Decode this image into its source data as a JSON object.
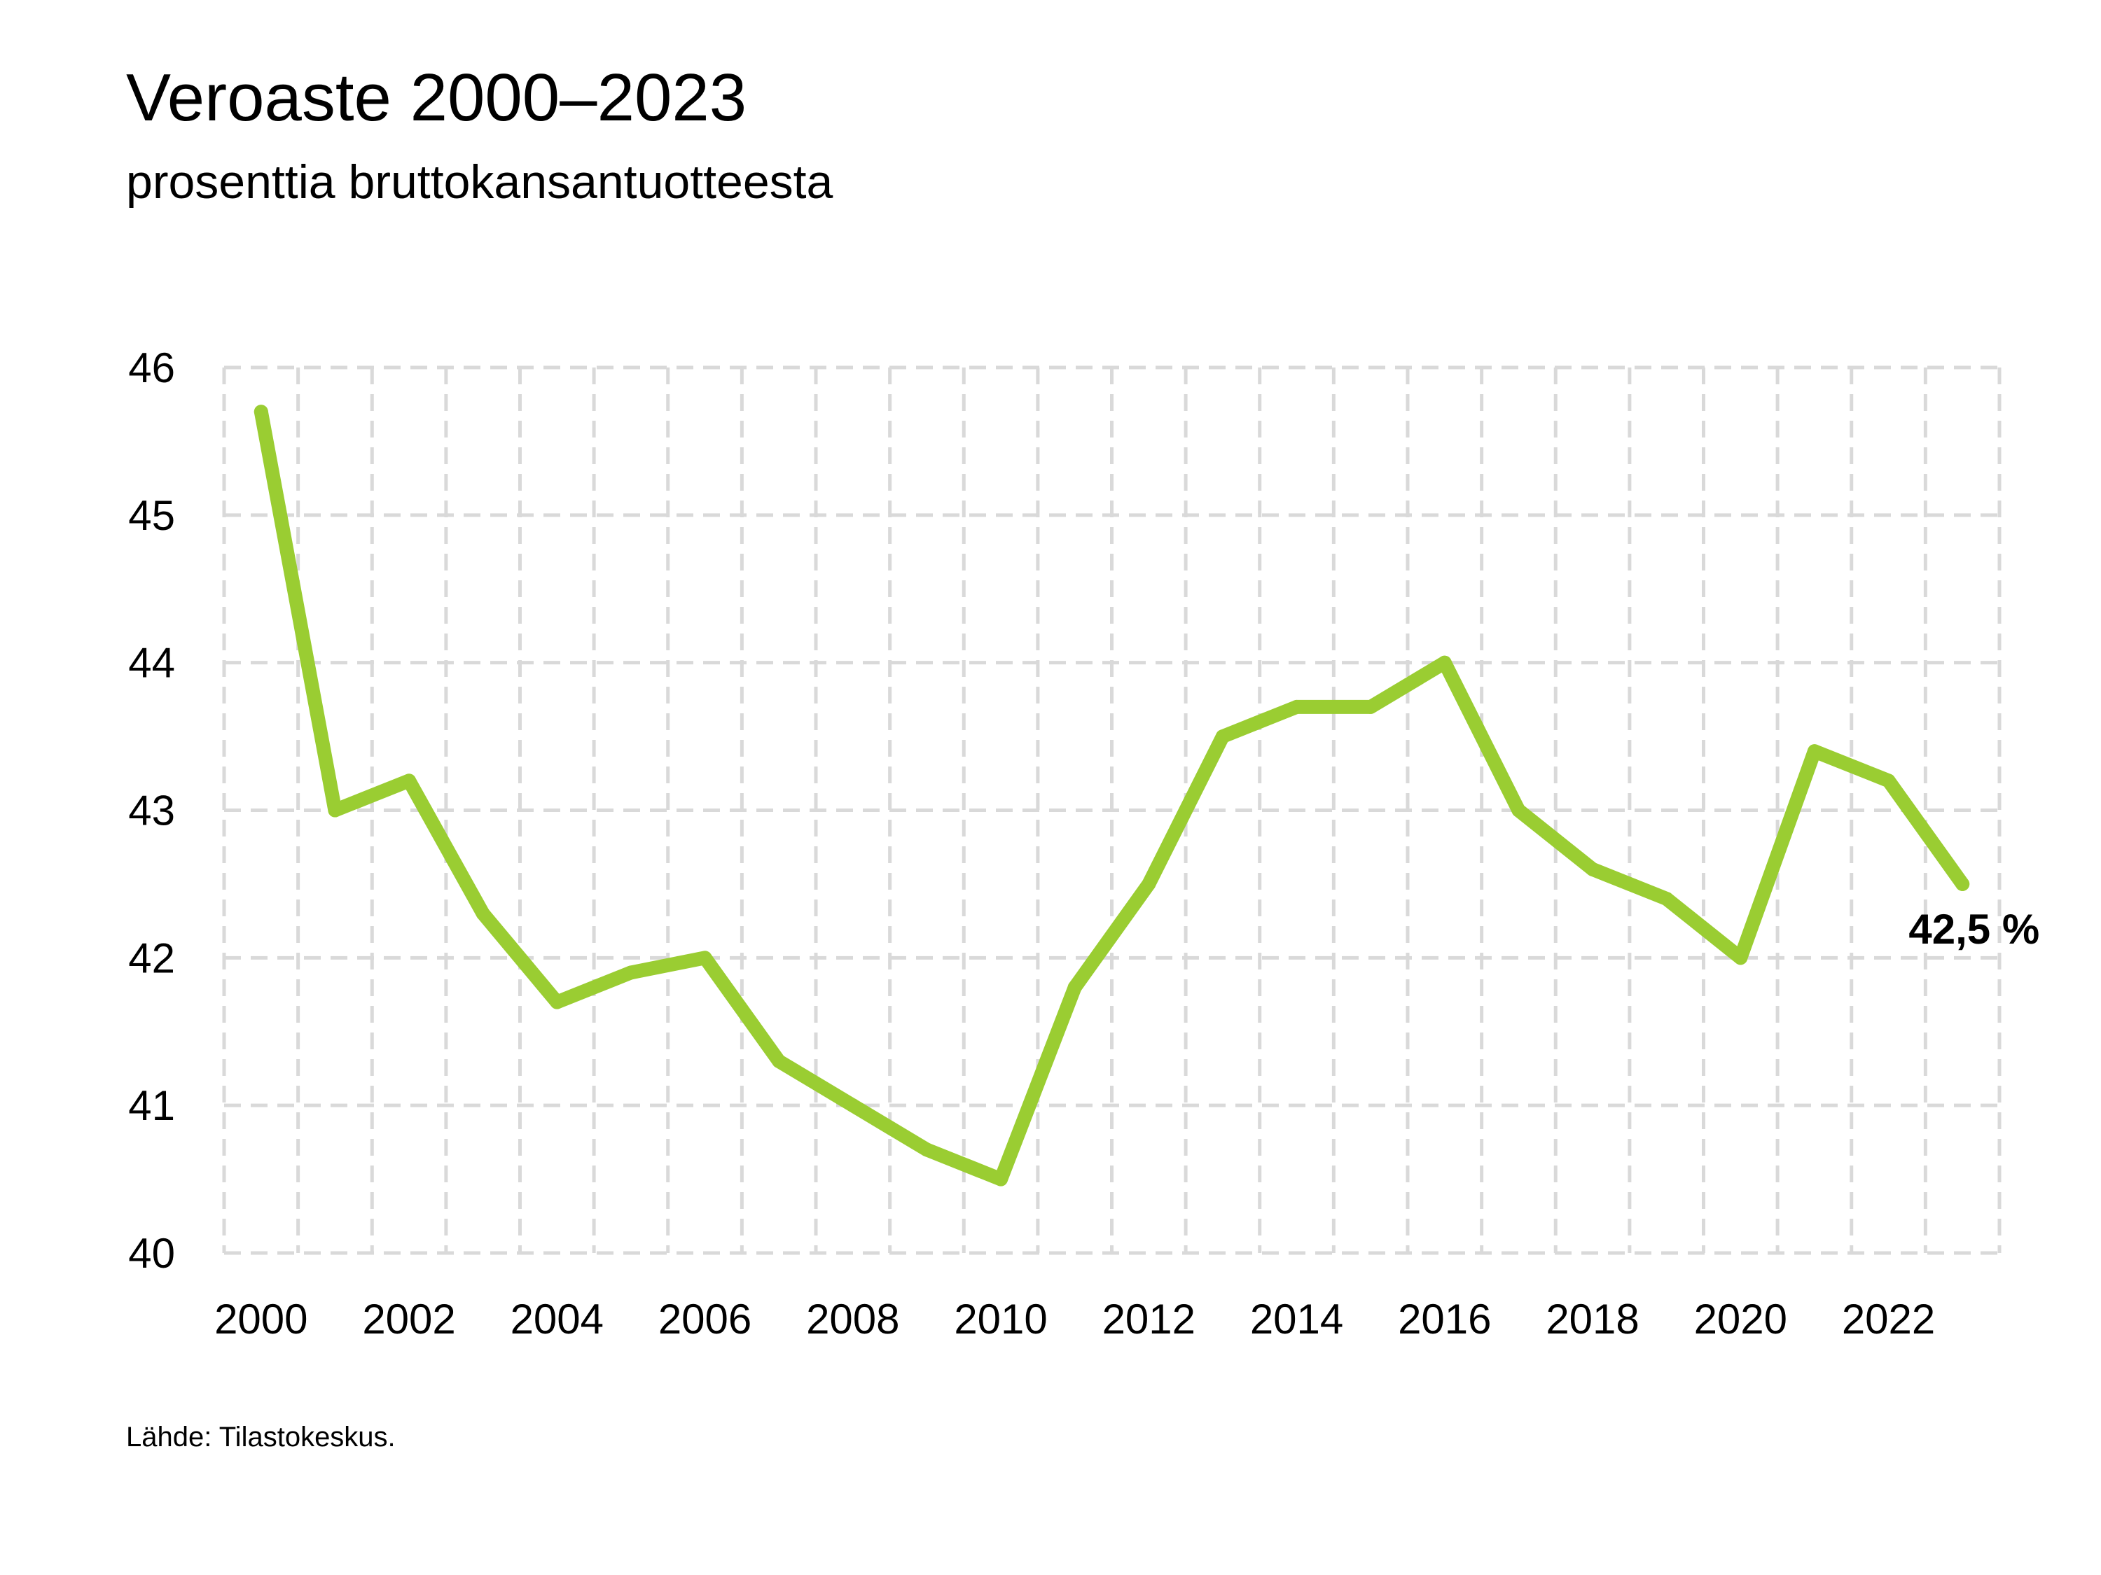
{
  "title": "Veroaste 2000–2023",
  "subtitle": "prosenttia bruttokansantuotteesta",
  "source": "Lähde: Tilastokeskus.",
  "colors": {
    "line": "#9ACD32",
    "grid": "#D9D9D9"
  },
  "chart_data": {
    "type": "line",
    "title": "Veroaste 2000–2023",
    "subtitle": "prosenttia bruttokansantuotteesta",
    "x": [
      2000,
      2001,
      2002,
      2003,
      2004,
      2005,
      2006,
      2007,
      2008,
      2009,
      2010,
      2011,
      2012,
      2013,
      2014,
      2015,
      2016,
      2017,
      2018,
      2019,
      2020,
      2021,
      2022,
      2023
    ],
    "series": [
      {
        "values": [
          45.7,
          43.0,
          43.2,
          42.3,
          41.7,
          41.9,
          42.0,
          41.3,
          41.0,
          40.7,
          40.5,
          41.8,
          42.5,
          43.5,
          43.7,
          43.7,
          44.0,
          43.0,
          42.6,
          42.4,
          42.0,
          43.4,
          43.2,
          42.5
        ]
      }
    ],
    "xlim": [
      1999.5,
      2023.5
    ],
    "ylim": [
      40,
      46
    ],
    "xticks": [
      "2000",
      "2002",
      "2004",
      "2006",
      "2008",
      "2010",
      "2012",
      "2014",
      "2016",
      "2018",
      "2020",
      "2022"
    ],
    "yticks": [
      "40",
      "41",
      "42",
      "43",
      "44",
      "45",
      "46"
    ],
    "grid": true,
    "grid_style": "dashed",
    "legend": "none",
    "end_label": "42,5 %"
  }
}
